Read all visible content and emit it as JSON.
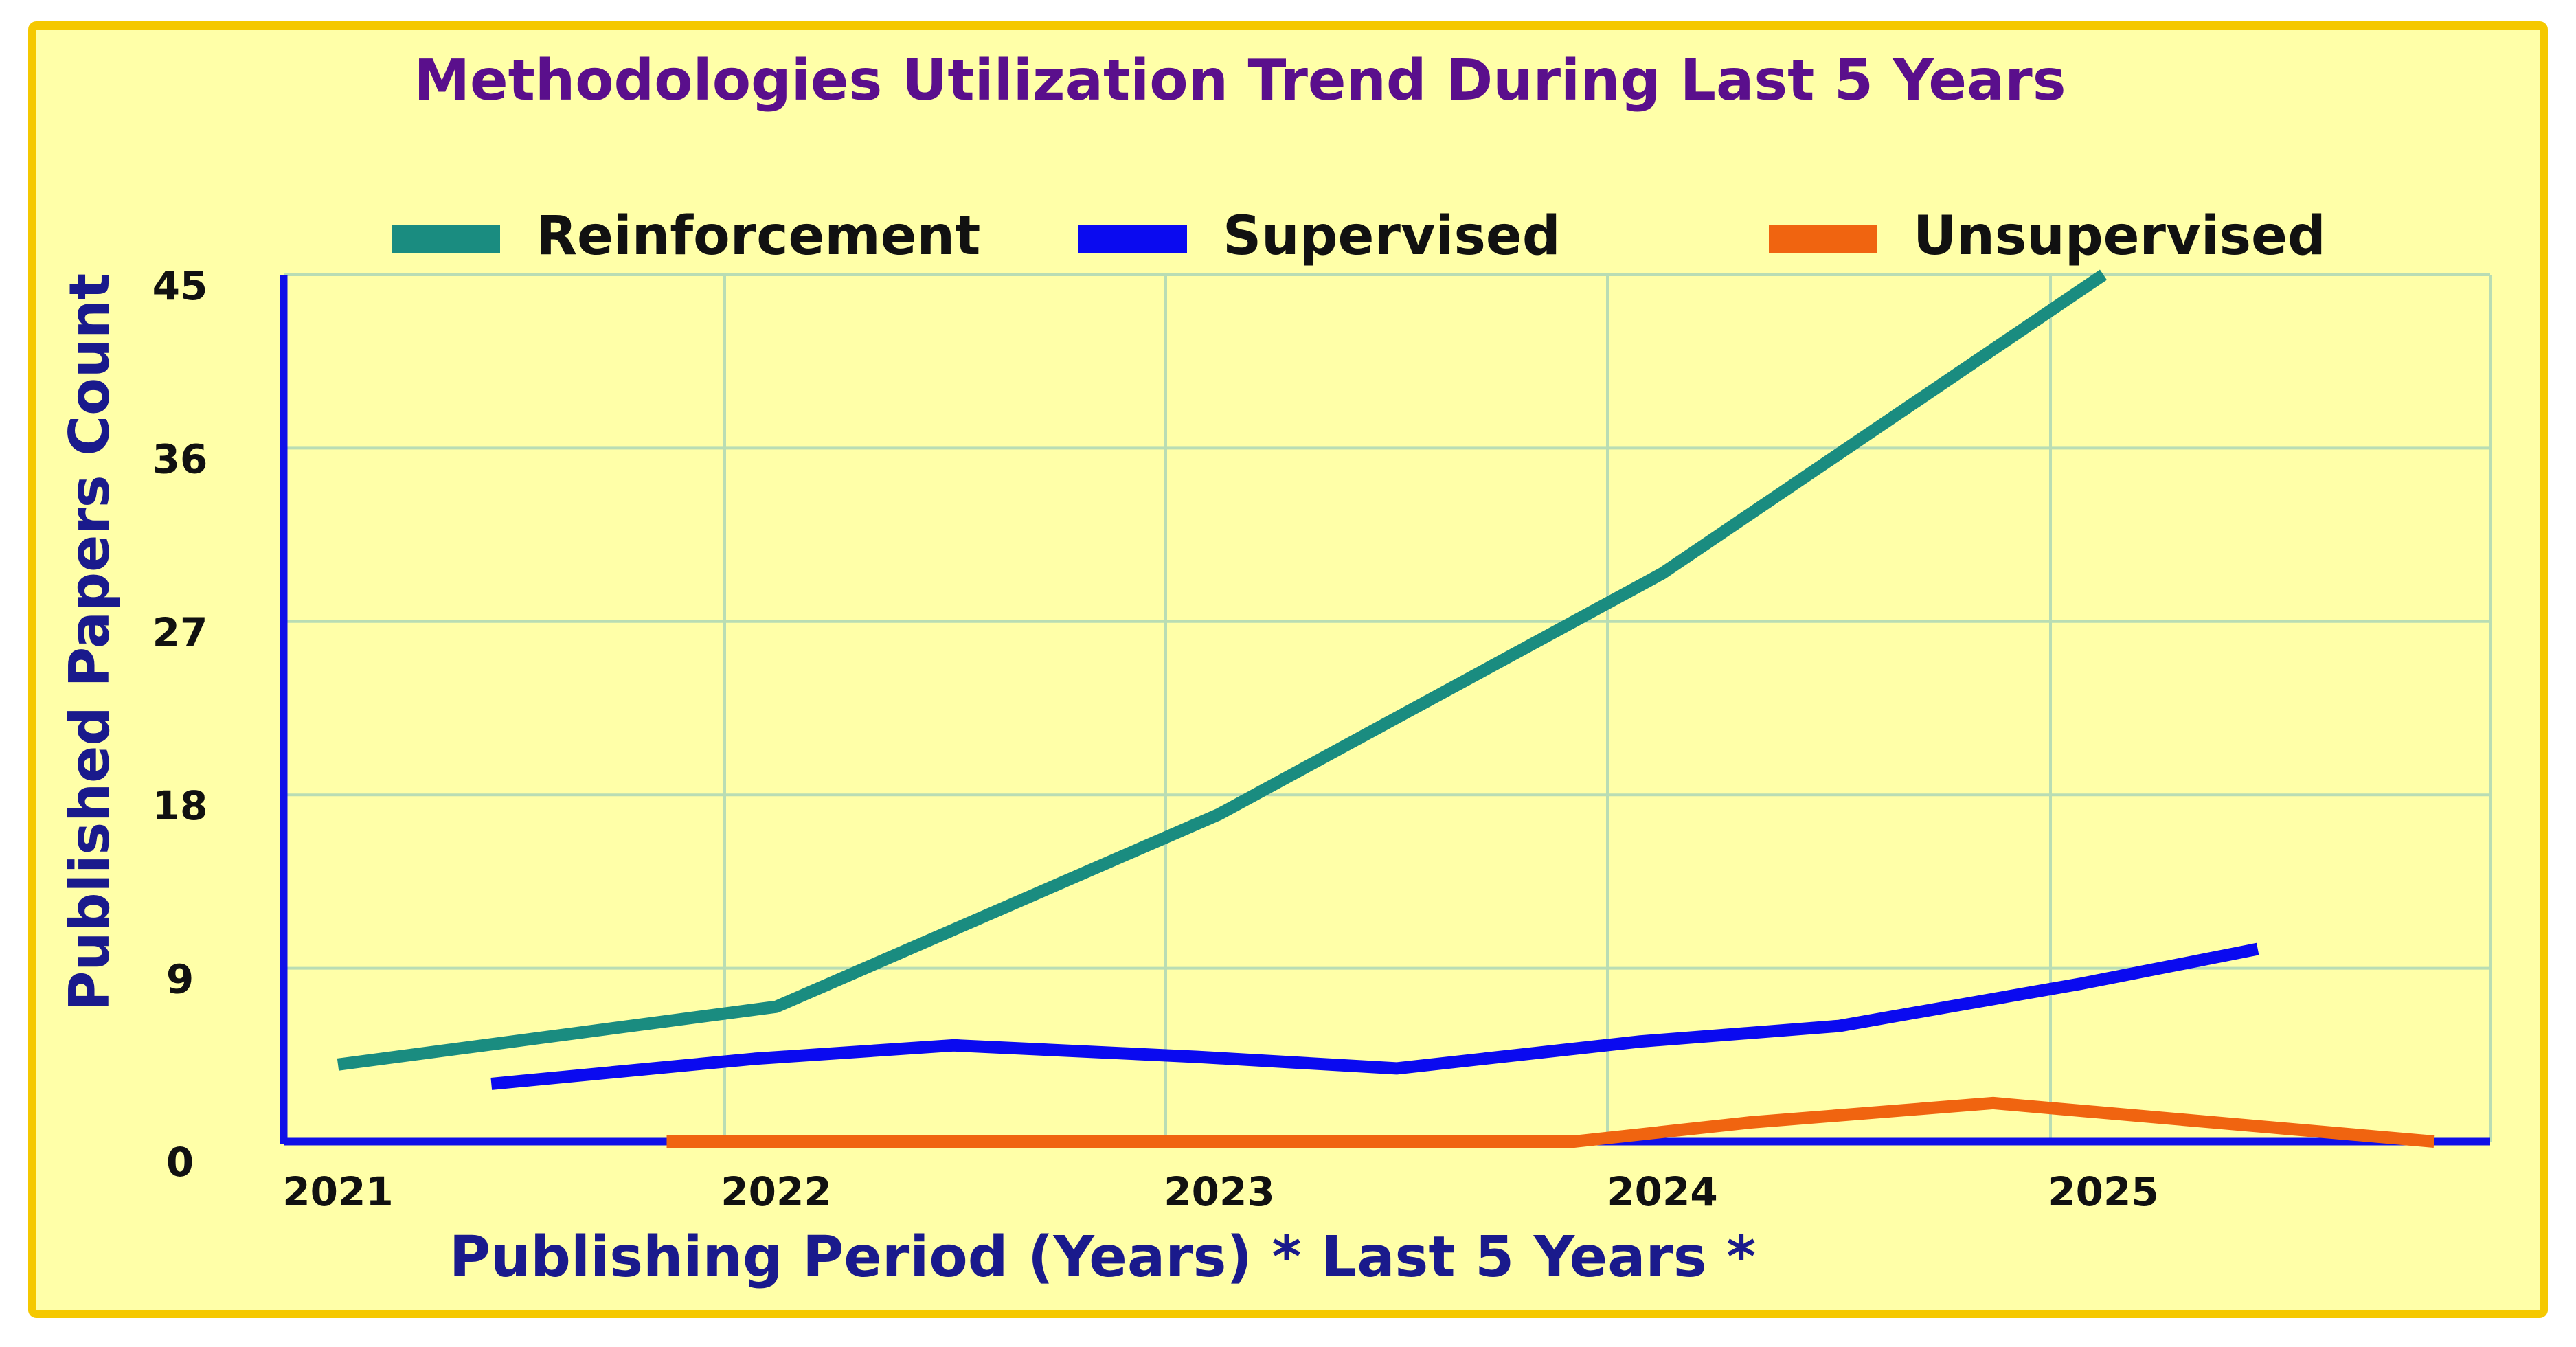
{
  "chart_data": {
    "type": "line",
    "title": "Methodologies Utilization Trend During Last 5 Years",
    "xlabel": "Publishing Period (Years) * Last 5 Years *",
    "ylabel": "Published Papers Count",
    "x_ticks": [
      "2021",
      "2022",
      "2023",
      "2024",
      "2025"
    ],
    "y_ticks": [
      "0",
      "9",
      "18",
      "27",
      "36",
      "45"
    ],
    "ylim": [
      0,
      45
    ],
    "grid": true,
    "legend_position": "top",
    "background_color": "#FFFFA8",
    "frame_color": "#F5C800",
    "title_color": "#5A0F8C",
    "axis_label_color": "#1A1A8C",
    "axis_line_color": "#1010E8",
    "grid_color": "#B9DDB4",
    "series": [
      {
        "name": "Reinforcement",
        "color": "#1A8C80",
        "points": [
          [
            2021.0,
            4.0
          ],
          [
            2022.0,
            7.0
          ],
          [
            2023.0,
            17.0
          ],
          [
            2024.0,
            29.5
          ],
          [
            2025.0,
            45.0
          ]
        ]
      },
      {
        "name": "Supervised",
        "color": "#0A0AF0",
        "points": [
          [
            2021.35,
            3.0
          ],
          [
            2021.95,
            4.3
          ],
          [
            2022.4,
            5.0
          ],
          [
            2022.95,
            4.4
          ],
          [
            2023.4,
            3.8
          ],
          [
            2023.95,
            5.2
          ],
          [
            2024.4,
            6.0
          ],
          [
            2024.95,
            8.2
          ],
          [
            2025.35,
            10.0
          ]
        ]
      },
      {
        "name": "Unsupervised",
        "color": "#F06410",
        "points": [
          [
            2021.75,
            0.0
          ],
          [
            2023.8,
            0.0
          ],
          [
            2024.2,
            1.0
          ],
          [
            2024.75,
            2.0
          ],
          [
            2025.75,
            0.0
          ]
        ]
      }
    ]
  }
}
